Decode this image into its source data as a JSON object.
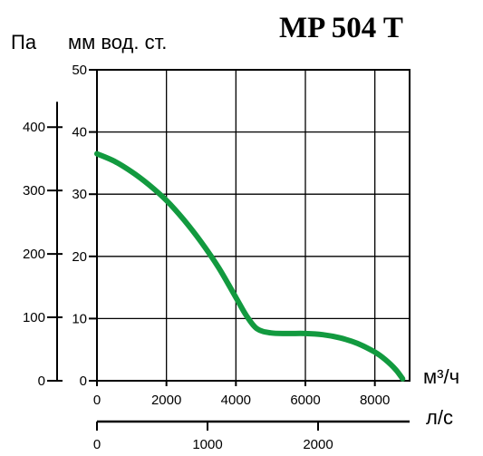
{
  "chart_data": {
    "type": "line",
    "title": "MP 504 T",
    "pa_label": "Па",
    "mm_label": "мм  вод. ст.",
    "x_label_m3h": "м³/ч",
    "x_label_ls": "л/с",
    "x_m3h_ticks": [
      "0",
      "2000",
      "4000",
      "6000",
      "8000"
    ],
    "x_m3h_range": [
      0,
      9000
    ],
    "x_ls_ticks": [
      "0",
      "1000",
      "2000"
    ],
    "x_ls_range": [
      0,
      2500
    ],
    "y_mm_ticks": [
      "0",
      "10",
      "20",
      "30",
      "40",
      "50"
    ],
    "y_mm_range": [
      0,
      50
    ],
    "y_pa_ticks": [
      "0",
      "100",
      "200",
      "300",
      "400"
    ],
    "grid": true,
    "line_color": "#129a3f",
    "series": [
      {
        "x": [
          0,
          500,
          1000,
          1500,
          2000,
          2500,
          3000,
          3500,
          4000,
          4300,
          4600,
          5000,
          5500,
          6000,
          6500,
          7000,
          7500,
          8000,
          8300,
          8600,
          8800
        ],
        "y": [
          36.5,
          35.3,
          33.6,
          31.5,
          29.0,
          25.9,
          22.3,
          18.2,
          13.4,
          10.5,
          8.4,
          7.7,
          7.6,
          7.6,
          7.4,
          6.9,
          6.0,
          4.6,
          3.4,
          1.8,
          0.3
        ]
      }
    ]
  }
}
